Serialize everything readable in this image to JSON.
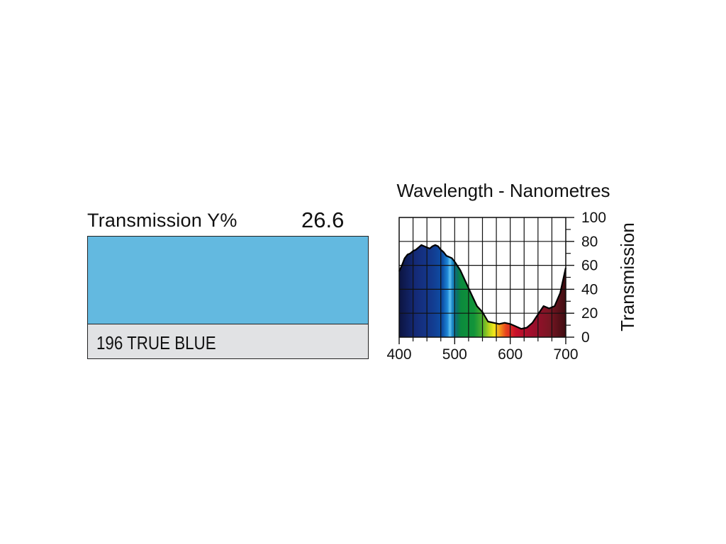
{
  "filter": {
    "transmission_label": "Transmission Y%",
    "transmission_value": "26.6",
    "name": "196 TRUE BLUE",
    "swatch_color": "#63b9e0",
    "name_bar_color": "#e1e2e4"
  },
  "chart_data": {
    "type": "area",
    "title": "Wavelength - Nanometres",
    "xlabel": "",
    "ylabel": "Transmission",
    "xlim": [
      400,
      700
    ],
    "ylim": [
      0,
      100
    ],
    "x_ticks": [
      "400",
      "500",
      "600",
      "700"
    ],
    "y_ticks": [
      "0",
      "20",
      "40",
      "60",
      "80",
      "100"
    ],
    "grid": true,
    "fill": "visible spectrum gradient",
    "x": [
      400,
      405,
      410,
      415,
      420,
      425,
      430,
      435,
      440,
      445,
      450,
      455,
      460,
      465,
      470,
      475,
      480,
      485,
      490,
      495,
      500,
      510,
      520,
      530,
      540,
      550,
      560,
      570,
      580,
      590,
      600,
      610,
      620,
      630,
      640,
      650,
      660,
      670,
      680,
      690,
      700
    ],
    "values": [
      55,
      60,
      66,
      69,
      70,
      72,
      73,
      75,
      77,
      76,
      75,
      74,
      76,
      77,
      76,
      73,
      71,
      68,
      67,
      66,
      63,
      56,
      46,
      36,
      26,
      21,
      13,
      12,
      11,
      12,
      11,
      9,
      7,
      8,
      12,
      19,
      26,
      24,
      26,
      37,
      58
    ]
  }
}
